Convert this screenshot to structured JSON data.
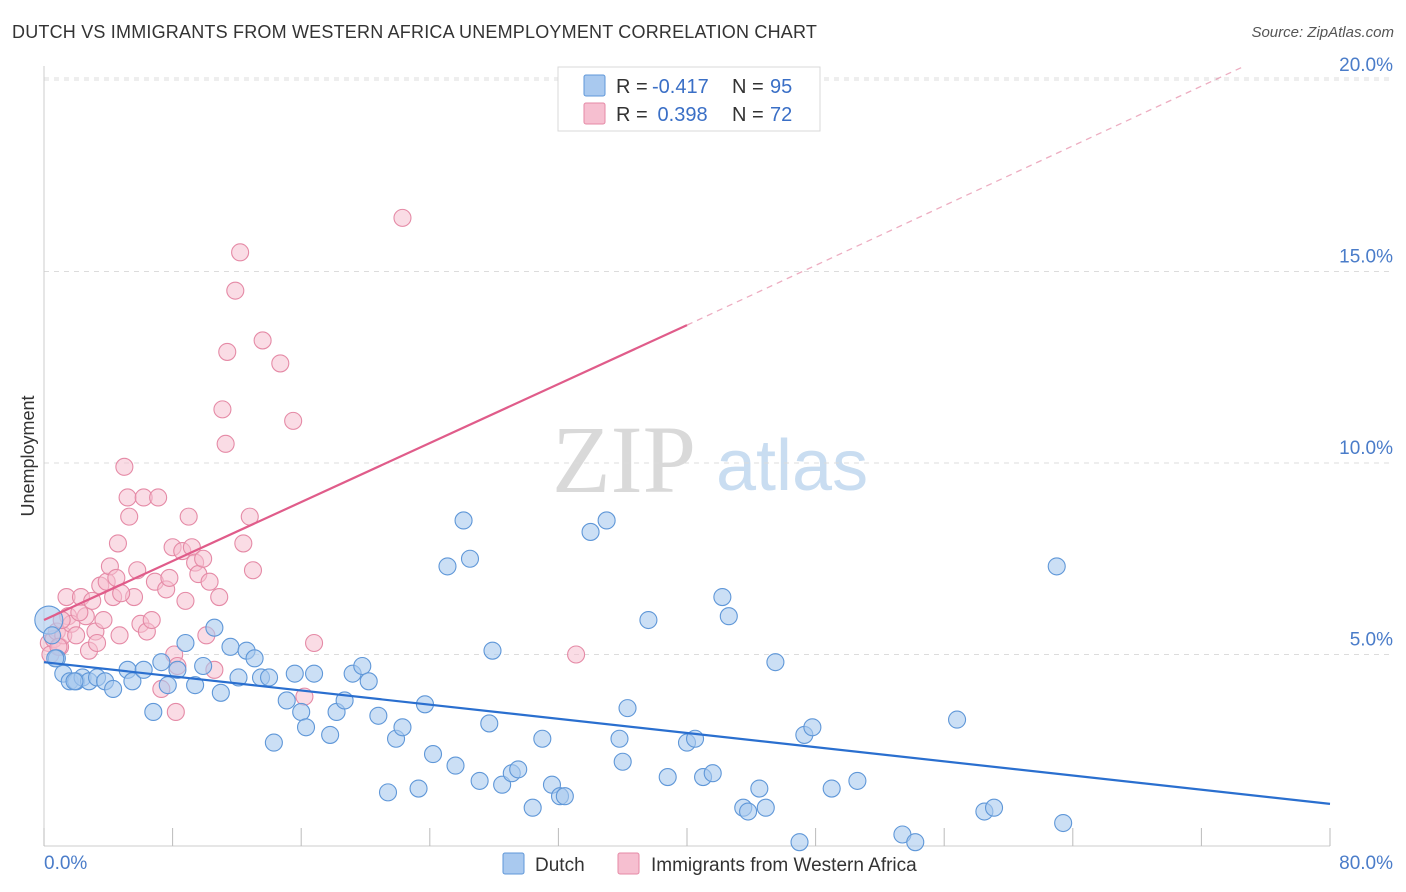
{
  "title": "DUTCH VS IMMIGRANTS FROM WESTERN AFRICA UNEMPLOYMENT CORRELATION CHART",
  "source": "Source: ZipAtlas.com",
  "watermark": {
    "zip": "ZIP",
    "atlas": "atlas"
  },
  "colors": {
    "blue_fill": "#a9c9ef",
    "blue_stroke": "#5f97d8",
    "blue_line": "#2a6fcf",
    "pink_fill": "#f6bfd0",
    "pink_stroke": "#e58aa6",
    "pink_line": "#e05c8a",
    "grid": "#dcdcdc",
    "tick_text": "#4a7cc9"
  },
  "legend": {
    "rows": [
      {
        "r_label": "R =",
        "r_value": "-0.417",
        "n_label": "N =",
        "n_value": "95"
      },
      {
        "r_label": "R =",
        "r_value": " 0.398",
        "n_label": "N =",
        "n_value": "72"
      }
    ]
  },
  "bottom_legend": [
    "Dutch",
    "Immigrants from Western Africa"
  ],
  "chart_data": {
    "type": "scatter",
    "title": "DUTCH VS IMMIGRANTS FROM WESTERN AFRICA UNEMPLOYMENT CORRELATION CHART",
    "xlabel": "",
    "ylabel": "Unemployment",
    "xlim": [
      0,
      80
    ],
    "ylim": [
      0,
      20
    ],
    "x_tick_labels": [
      "0.0%",
      "80.0%"
    ],
    "y_ticks": [
      5,
      10,
      15,
      20
    ],
    "y_tick_labels": [
      "5.0%",
      "10.0%",
      "15.0%",
      "20.0%"
    ],
    "grid": "horizontal dashed",
    "legend_position": "top-center",
    "series": [
      {
        "name": "Dutch",
        "r": -0.417,
        "n": 95,
        "trend": {
          "x0": 0,
          "y0": 4.8,
          "x1": 80,
          "y1": 1.1,
          "dashed_from": null
        },
        "points": [
          [
            0.3,
            5.9
          ],
          [
            0.5,
            5.5
          ],
          [
            0.8,
            4.9
          ],
          [
            1.2,
            4.5
          ],
          [
            1.6,
            4.3
          ],
          [
            2.0,
            4.3
          ],
          [
            2.4,
            4.4
          ],
          [
            2.8,
            4.3
          ],
          [
            3.3,
            4.4
          ],
          [
            3.8,
            4.3
          ],
          [
            4.3,
            4.1
          ],
          [
            5.2,
            4.6
          ],
          [
            5.5,
            4.3
          ],
          [
            6.2,
            4.6
          ],
          [
            6.8,
            3.5
          ],
          [
            7.3,
            4.8
          ],
          [
            7.7,
            4.2
          ],
          [
            8.3,
            4.6
          ],
          [
            8.8,
            5.3
          ],
          [
            9.4,
            4.2
          ],
          [
            9.9,
            4.7
          ],
          [
            10.6,
            5.7
          ],
          [
            11.0,
            4.0
          ],
          [
            11.6,
            5.2
          ],
          [
            12.1,
            4.4
          ],
          [
            12.6,
            5.1
          ],
          [
            13.1,
            4.9
          ],
          [
            13.5,
            4.4
          ],
          [
            14.0,
            4.4
          ],
          [
            14.3,
            2.7
          ],
          [
            15.1,
            3.8
          ],
          [
            15.6,
            4.5
          ],
          [
            16.0,
            3.5
          ],
          [
            16.3,
            3.1
          ],
          [
            16.8,
            4.5
          ],
          [
            17.8,
            2.9
          ],
          [
            18.2,
            3.5
          ],
          [
            18.7,
            3.8
          ],
          [
            19.2,
            4.5
          ],
          [
            19.8,
            4.7
          ],
          [
            20.2,
            4.3
          ],
          [
            20.8,
            3.4
          ],
          [
            21.4,
            1.4
          ],
          [
            21.9,
            2.8
          ],
          [
            22.3,
            3.1
          ],
          [
            23.3,
            1.5
          ],
          [
            23.7,
            3.7
          ],
          [
            24.2,
            2.4
          ],
          [
            25.1,
            7.3
          ],
          [
            25.6,
            2.1
          ],
          [
            26.1,
            8.5
          ],
          [
            26.5,
            7.5
          ],
          [
            27.1,
            1.7
          ],
          [
            27.7,
            3.2
          ],
          [
            27.9,
            5.1
          ],
          [
            28.5,
            1.6
          ],
          [
            29.1,
            1.9
          ],
          [
            29.5,
            2.0
          ],
          [
            30.4,
            1.0
          ],
          [
            31.0,
            2.8
          ],
          [
            31.6,
            1.6
          ],
          [
            32.1,
            1.3
          ],
          [
            32.4,
            1.3
          ],
          [
            34.0,
            8.2
          ],
          [
            35.0,
            8.5
          ],
          [
            35.8,
            2.8
          ],
          [
            36.0,
            2.2
          ],
          [
            36.3,
            3.6
          ],
          [
            37.6,
            5.9
          ],
          [
            38.8,
            1.8
          ],
          [
            40.0,
            2.7
          ],
          [
            40.5,
            2.8
          ],
          [
            41.0,
            1.8
          ],
          [
            41.6,
            1.9
          ],
          [
            42.2,
            6.5
          ],
          [
            42.6,
            6.0
          ],
          [
            43.5,
            1.0
          ],
          [
            43.8,
            0.9
          ],
          [
            44.5,
            1.5
          ],
          [
            44.9,
            1.0
          ],
          [
            45.5,
            4.8
          ],
          [
            47.0,
            0.1
          ],
          [
            47.3,
            2.9
          ],
          [
            47.8,
            3.1
          ],
          [
            49.0,
            1.5
          ],
          [
            50.6,
            1.7
          ],
          [
            53.4,
            0.3
          ],
          [
            54.2,
            0.1
          ],
          [
            56.8,
            3.3
          ],
          [
            58.5,
            0.9
          ],
          [
            59.1,
            1.0
          ],
          [
            63.0,
            7.3
          ],
          [
            63.4,
            0.6
          ],
          [
            0.7,
            4.9
          ],
          [
            1.9,
            4.3
          ]
        ]
      },
      {
        "name": "Immigrants from Western Africa",
        "r": 0.398,
        "n": 72,
        "trend": {
          "x0": 0,
          "y0": 5.9,
          "x1": 40,
          "y1": 13.6,
          "dashed_to": {
            "x": 80,
            "y": 21.4
          }
        },
        "points": [
          [
            0.3,
            5.3
          ],
          [
            0.4,
            5.0
          ],
          [
            0.6,
            5.4
          ],
          [
            0.8,
            5.6
          ],
          [
            1.0,
            5.2
          ],
          [
            1.2,
            5.5
          ],
          [
            1.4,
            6.5
          ],
          [
            1.5,
            6.0
          ],
          [
            1.7,
            5.8
          ],
          [
            2.0,
            5.5
          ],
          [
            2.3,
            6.5
          ],
          [
            2.6,
            6.0
          ],
          [
            2.8,
            5.1
          ],
          [
            3.0,
            6.4
          ],
          [
            3.2,
            5.6
          ],
          [
            3.5,
            6.8
          ],
          [
            3.7,
            5.9
          ],
          [
            3.9,
            6.9
          ],
          [
            4.1,
            7.3
          ],
          [
            4.3,
            6.5
          ],
          [
            4.5,
            7.0
          ],
          [
            4.6,
            7.9
          ],
          [
            4.7,
            5.5
          ],
          [
            5.0,
            9.9
          ],
          [
            5.2,
            9.1
          ],
          [
            5.3,
            8.6
          ],
          [
            5.6,
            6.5
          ],
          [
            5.8,
            7.2
          ],
          [
            6.0,
            5.8
          ],
          [
            6.2,
            9.1
          ],
          [
            6.4,
            5.6
          ],
          [
            6.7,
            5.9
          ],
          [
            6.9,
            6.9
          ],
          [
            7.1,
            9.1
          ],
          [
            7.3,
            4.1
          ],
          [
            7.6,
            6.7
          ],
          [
            7.8,
            7.0
          ],
          [
            8.0,
            7.8
          ],
          [
            8.1,
            5.0
          ],
          [
            8.2,
            3.5
          ],
          [
            8.3,
            4.7
          ],
          [
            8.6,
            7.7
          ],
          [
            8.8,
            6.4
          ],
          [
            9.0,
            8.6
          ],
          [
            9.2,
            7.8
          ],
          [
            9.4,
            7.4
          ],
          [
            9.6,
            7.1
          ],
          [
            9.9,
            7.5
          ],
          [
            10.1,
            5.5
          ],
          [
            10.3,
            6.9
          ],
          [
            10.6,
            4.6
          ],
          [
            10.9,
            6.5
          ],
          [
            11.1,
            11.4
          ],
          [
            11.3,
            10.5
          ],
          [
            11.4,
            12.9
          ],
          [
            11.9,
            14.5
          ],
          [
            12.2,
            15.5
          ],
          [
            12.4,
            7.9
          ],
          [
            12.8,
            8.6
          ],
          [
            13.0,
            7.2
          ],
          [
            13.6,
            13.2
          ],
          [
            14.7,
            12.6
          ],
          [
            15.5,
            11.1
          ],
          [
            16.2,
            3.9
          ],
          [
            16.8,
            5.3
          ],
          [
            22.3,
            16.4
          ],
          [
            33.1,
            5.0
          ],
          [
            1.1,
            5.9
          ],
          [
            2.2,
            6.1
          ],
          [
            3.3,
            5.3
          ],
          [
            4.8,
            6.6
          ],
          [
            0.9,
            5.2
          ]
        ]
      }
    ]
  }
}
